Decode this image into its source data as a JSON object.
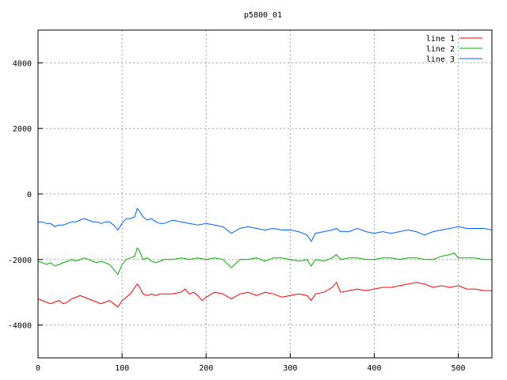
{
  "chart_data": {
    "type": "line",
    "title": "p5800_01",
    "xlabel": "",
    "ylabel": "",
    "xlim": [
      0,
      540
    ],
    "ylim": [
      -5000,
      5000
    ],
    "x_ticks": [
      0,
      100,
      200,
      300,
      400,
      500
    ],
    "y_ticks": [
      -4000,
      -2000,
      0,
      2000,
      4000
    ],
    "grid": true,
    "legend_position": "top-right",
    "series": [
      {
        "name": "line 1",
        "color": "#ff0000",
        "x": [
          0,
          5,
          10,
          15,
          20,
          25,
          30,
          35,
          40,
          45,
          50,
          55,
          60,
          65,
          70,
          75,
          80,
          85,
          90,
          95,
          100,
          105,
          110,
          115,
          118,
          120,
          125,
          130,
          135,
          140,
          145,
          150,
          160,
          170,
          175,
          180,
          185,
          190,
          195,
          200,
          210,
          220,
          230,
          240,
          250,
          260,
          270,
          280,
          290,
          300,
          310,
          320,
          325,
          330,
          340,
          350,
          355,
          360,
          370,
          380,
          390,
          400,
          410,
          420,
          430,
          440,
          450,
          460,
          470,
          480,
          490,
          500,
          510,
          520,
          530,
          540
        ],
        "y": [
          -3200,
          -3250,
          -3300,
          -3350,
          -3300,
          -3250,
          -3350,
          -3300,
          -3200,
          -3150,
          -3100,
          -3150,
          -3200,
          -3250,
          -3300,
          -3350,
          -3300,
          -3250,
          -3350,
          -3450,
          -3250,
          -3150,
          -3050,
          -2850,
          -2750,
          -2800,
          -3050,
          -3100,
          -3050,
          -3100,
          -3050,
          -3050,
          -3050,
          -3000,
          -2900,
          -3050,
          -3000,
          -3100,
          -3250,
          -3150,
          -3000,
          -3050,
          -3200,
          -3050,
          -3000,
          -3100,
          -3000,
          -3050,
          -3150,
          -3100,
          -3050,
          -3100,
          -3250,
          -3050,
          -3000,
          -2850,
          -2700,
          -3000,
          -2950,
          -2900,
          -2950,
          -2900,
          -2850,
          -2850,
          -2800,
          -2750,
          -2700,
          -2750,
          -2850,
          -2800,
          -2850,
          -2800,
          -2900,
          -2900,
          -2950,
          -2950
        ]
      },
      {
        "name": "line 2",
        "color": "#00b000",
        "x": [
          0,
          5,
          10,
          15,
          20,
          25,
          30,
          35,
          40,
          45,
          50,
          55,
          60,
          65,
          70,
          75,
          80,
          85,
          90,
          95,
          100,
          105,
          110,
          115,
          118,
          120,
          125,
          130,
          135,
          140,
          145,
          150,
          160,
          170,
          180,
          190,
          200,
          210,
          220,
          230,
          240,
          250,
          260,
          270,
          280,
          290,
          300,
          310,
          320,
          325,
          330,
          340,
          350,
          355,
          360,
          370,
          380,
          390,
          400,
          410,
          420,
          430,
          440,
          450,
          460,
          470,
          480,
          490,
          495,
          500,
          510,
          520,
          530,
          540
        ],
        "y": [
          -2050,
          -2100,
          -2150,
          -2100,
          -2200,
          -2150,
          -2100,
          -2050,
          -2000,
          -2050,
          -2000,
          -1950,
          -2000,
          -2050,
          -2100,
          -2050,
          -2100,
          -2150,
          -2300,
          -2450,
          -2150,
          -2000,
          -1950,
          -1900,
          -1650,
          -1700,
          -2000,
          -1950,
          -2050,
          -2100,
          -2050,
          -2000,
          -2000,
          -1950,
          -2000,
          -1950,
          -2000,
          -1950,
          -2000,
          -2250,
          -2000,
          -2000,
          -1950,
          -2050,
          -1950,
          -1950,
          -2000,
          -2050,
          -2000,
          -2200,
          -2000,
          -2050,
          -1950,
          -1850,
          -2000,
          -1950,
          -1950,
          -2000,
          -2000,
          -1950,
          -1950,
          -2000,
          -1950,
          -1950,
          -2000,
          -2000,
          -1900,
          -1850,
          -1800,
          -1950,
          -1950,
          -1950,
          -2000,
          -2000
        ]
      },
      {
        "name": "line 3",
        "color": "#0060ff",
        "x": [
          0,
          5,
          10,
          15,
          20,
          25,
          30,
          35,
          40,
          45,
          50,
          55,
          60,
          65,
          70,
          75,
          80,
          85,
          90,
          95,
          100,
          105,
          110,
          115,
          118,
          120,
          125,
          130,
          135,
          140,
          145,
          150,
          160,
          170,
          180,
          190,
          200,
          210,
          220,
          230,
          240,
          250,
          260,
          270,
          280,
          290,
          300,
          310,
          320,
          325,
          330,
          340,
          350,
          355,
          360,
          370,
          380,
          390,
          400,
          410,
          420,
          430,
          440,
          450,
          460,
          470,
          480,
          490,
          500,
          510,
          520,
          530,
          540
        ],
        "y": [
          -850,
          -850,
          -900,
          -900,
          -1000,
          -950,
          -950,
          -900,
          -850,
          -850,
          -800,
          -750,
          -800,
          -850,
          -850,
          -900,
          -850,
          -850,
          -950,
          -1100,
          -900,
          -750,
          -750,
          -700,
          -450,
          -500,
          -700,
          -800,
          -750,
          -850,
          -900,
          -900,
          -800,
          -850,
          -900,
          -950,
          -900,
          -950,
          -1000,
          -1200,
          -1050,
          -1000,
          -1050,
          -1100,
          -1050,
          -1100,
          -1100,
          -1150,
          -1250,
          -1450,
          -1200,
          -1150,
          -1100,
          -1050,
          -1150,
          -1150,
          -1050,
          -1150,
          -1200,
          -1150,
          -1200,
          -1150,
          -1100,
          -1150,
          -1250,
          -1150,
          -1100,
          -1050,
          -1000,
          -1050,
          -1050,
          -1050,
          -1100
        ]
      }
    ]
  }
}
